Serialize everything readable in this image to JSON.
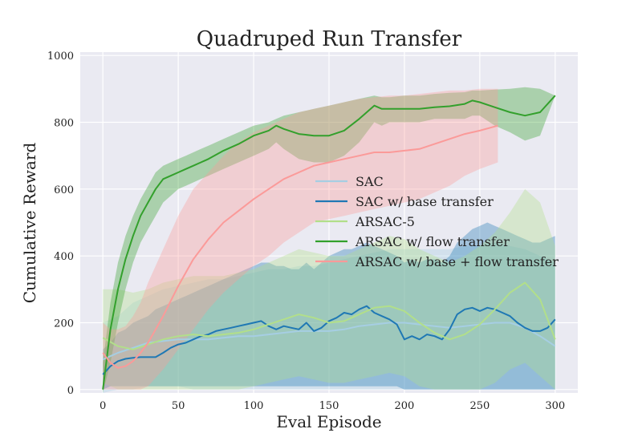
{
  "chart_data": {
    "type": "line",
    "title": "Quadruped Run Transfer",
    "xlabel": "Eval Episode",
    "ylabel": "Cumulative Reward",
    "xlim": [
      -15,
      315
    ],
    "ylim": [
      -10,
      1010
    ],
    "xticks": [
      0,
      50,
      100,
      150,
      200,
      250,
      300
    ],
    "yticks": [
      0,
      200,
      400,
      600,
      800,
      1000
    ],
    "grid": true,
    "legend_position": "center-right",
    "series": [
      {
        "name": "SAC",
        "color": "#a6cee3",
        "x": [
          0,
          10,
          20,
          30,
          40,
          50,
          60,
          70,
          80,
          90,
          100,
          110,
          120,
          130,
          140,
          150,
          160,
          170,
          180,
          190,
          200,
          210,
          220,
          230,
          240,
          250,
          260,
          270,
          280,
          290,
          300
        ],
        "y": [
          90,
          110,
          125,
          140,
          145,
          150,
          150,
          150,
          155,
          160,
          160,
          165,
          170,
          175,
          175,
          175,
          180,
          190,
          195,
          200,
          200,
          195,
          190,
          185,
          190,
          195,
          200,
          200,
          185,
          160,
          130
        ],
        "upper": [
          200,
          220,
          260,
          280,
          300,
          310,
          320,
          330,
          330,
          340,
          350,
          360,
          360,
          370,
          370,
          380,
          390,
          400,
          410,
          420,
          420,
          420,
          420,
          420,
          430,
          430,
          440,
          430,
          420,
          400,
          380
        ],
        "lower": [
          -10,
          0,
          0,
          10,
          10,
          10,
          0,
          0,
          0,
          0,
          0,
          0,
          0,
          0,
          0,
          0,
          0,
          0,
          0,
          0,
          0,
          0,
          0,
          0,
          0,
          0,
          0,
          0,
          0,
          0,
          0
        ]
      },
      {
        "name": "SAC w/ base transfer",
        "color": "#1f78b4",
        "x": [
          0,
          5,
          10,
          15,
          20,
          25,
          30,
          35,
          40,
          45,
          50,
          55,
          60,
          65,
          70,
          75,
          80,
          85,
          90,
          95,
          100,
          105,
          110,
          115,
          120,
          125,
          130,
          135,
          140,
          145,
          150,
          155,
          160,
          165,
          170,
          175,
          180,
          185,
          190,
          195,
          200,
          205,
          210,
          215,
          220,
          225,
          230,
          235,
          240,
          245,
          250,
          255,
          260,
          265,
          270,
          275,
          280,
          285,
          290,
          295,
          300
        ],
        "y": [
          45,
          70,
          85,
          92,
          95,
          97,
          97,
          97,
          110,
          125,
          135,
          140,
          150,
          160,
          165,
          175,
          180,
          185,
          190,
          195,
          200,
          205,
          190,
          180,
          190,
          185,
          180,
          200,
          175,
          185,
          205,
          215,
          230,
          225,
          240,
          250,
          230,
          220,
          210,
          195,
          150,
          160,
          150,
          165,
          160,
          150,
          180,
          225,
          240,
          245,
          235,
          245,
          240,
          230,
          220,
          200,
          185,
          175,
          175,
          185,
          210
        ],
        "upper": [
          120,
          140,
          170,
          180,
          200,
          210,
          220,
          240,
          250,
          260,
          270,
          280,
          290,
          300,
          310,
          320,
          330,
          340,
          350,
          360,
          370,
          380,
          380,
          370,
          370,
          360,
          360,
          380,
          360,
          380,
          400,
          410,
          420,
          420,
          430,
          440,
          430,
          420,
          410,
          400,
          380,
          390,
          380,
          390,
          390,
          380,
          400,
          440,
          460,
          480,
          490,
          500,
          490,
          480,
          470,
          460,
          450,
          440,
          440,
          450,
          460
        ],
        "lower": [
          0,
          10,
          10,
          10,
          10,
          10,
          10,
          10,
          10,
          10,
          10,
          10,
          10,
          10,
          10,
          10,
          10,
          10,
          10,
          10,
          10,
          10,
          10,
          10,
          10,
          10,
          10,
          10,
          10,
          10,
          10,
          10,
          10,
          10,
          10,
          10,
          10,
          10,
          10,
          10,
          0,
          0,
          0,
          0,
          0,
          0,
          0,
          0,
          0,
          0,
          0,
          0,
          0,
          0,
          0,
          0,
          0,
          0,
          0,
          0,
          0
        ]
      },
      {
        "name": "ARSAC-5",
        "color": "#b2df8a",
        "x": [
          0,
          10,
          20,
          30,
          40,
          50,
          60,
          70,
          80,
          90,
          100,
          110,
          120,
          130,
          140,
          150,
          160,
          170,
          180,
          190,
          200,
          210,
          220,
          230,
          240,
          250,
          260,
          270,
          280,
          290,
          300
        ],
        "y": [
          155,
          130,
          120,
          135,
          150,
          160,
          165,
          160,
          165,
          170,
          180,
          195,
          210,
          225,
          215,
          200,
          205,
          225,
          245,
          250,
          235,
          200,
          170,
          150,
          165,
          195,
          240,
          290,
          320,
          270,
          150
        ],
        "upper": [
          300,
          300,
          290,
          300,
          320,
          330,
          340,
          340,
          340,
          350,
          360,
          380,
          400,
          420,
          410,
          400,
          400,
          420,
          440,
          460,
          450,
          420,
          400,
          380,
          400,
          430,
          470,
          530,
          600,
          560,
          430
        ],
        "lower": [
          20,
          0,
          0,
          0,
          0,
          0,
          0,
          0,
          0,
          0,
          10,
          20,
          30,
          40,
          30,
          20,
          20,
          30,
          40,
          50,
          40,
          10,
          0,
          0,
          0,
          0,
          20,
          60,
          80,
          40,
          0
        ]
      },
      {
        "name": "ARSAC w/ flow transfer",
        "color": "#33a02c",
        "x": [
          0,
          5,
          10,
          15,
          20,
          25,
          30,
          35,
          40,
          45,
          50,
          55,
          60,
          65,
          70,
          80,
          90,
          100,
          110,
          115,
          120,
          130,
          140,
          150,
          160,
          170,
          180,
          185,
          190,
          200,
          210,
          220,
          230,
          240,
          245,
          250,
          260,
          270,
          280,
          290,
          300
        ],
        "y": [
          0,
          180,
          300,
          390,
          460,
          520,
          560,
          600,
          630,
          640,
          650,
          660,
          670,
          680,
          690,
          715,
          735,
          760,
          775,
          790,
          780,
          765,
          760,
          760,
          775,
          810,
          850,
          840,
          840,
          840,
          840,
          845,
          848,
          855,
          865,
          860,
          845,
          830,
          820,
          830,
          880
        ],
        "upper": [
          80,
          260,
          380,
          460,
          520,
          570,
          610,
          650,
          670,
          680,
          690,
          700,
          710,
          720,
          730,
          750,
          770,
          790,
          800,
          810,
          820,
          830,
          840,
          850,
          860,
          870,
          880,
          875,
          875,
          880,
          880,
          885,
          888,
          890,
          895,
          895,
          898,
          900,
          905,
          900,
          880
        ],
        "lower": [
          -10,
          80,
          200,
          300,
          380,
          440,
          480,
          520,
          560,
          580,
          600,
          610,
          620,
          630,
          640,
          660,
          680,
          700,
          720,
          740,
          720,
          690,
          680,
          680,
          700,
          740,
          800,
          790,
          800,
          800,
          800,
          810,
          810,
          810,
          820,
          820,
          790,
          770,
          745,
          760,
          880
        ]
      },
      {
        "name": "ARSAC w/ base + flow transfer",
        "color": "#fb9a99",
        "x": [
          0,
          5,
          10,
          15,
          20,
          25,
          30,
          40,
          50,
          60,
          70,
          80,
          90,
          100,
          110,
          120,
          130,
          140,
          150,
          160,
          170,
          180,
          190,
          200,
          210,
          220,
          230,
          240,
          250,
          262
        ],
        "y": [
          110,
          80,
          65,
          70,
          85,
          110,
          140,
          220,
          310,
          390,
          450,
          500,
          535,
          570,
          600,
          630,
          650,
          670,
          680,
          690,
          700,
          710,
          710,
          715,
          720,
          735,
          750,
          765,
          775,
          790
        ],
        "upper": [
          200,
          180,
          180,
          190,
          220,
          260,
          320,
          420,
          520,
          600,
          650,
          700,
          740,
          770,
          790,
          810,
          830,
          840,
          850,
          860,
          870,
          875,
          880,
          880,
          885,
          890,
          895,
          895,
          900,
          900
        ],
        "lower": [
          0,
          0,
          0,
          0,
          0,
          0,
          10,
          60,
          120,
          180,
          240,
          290,
          330,
          370,
          400,
          440,
          470,
          500,
          510,
          520,
          530,
          540,
          550,
          560,
          570,
          590,
          610,
          640,
          660,
          680
        ]
      }
    ]
  }
}
